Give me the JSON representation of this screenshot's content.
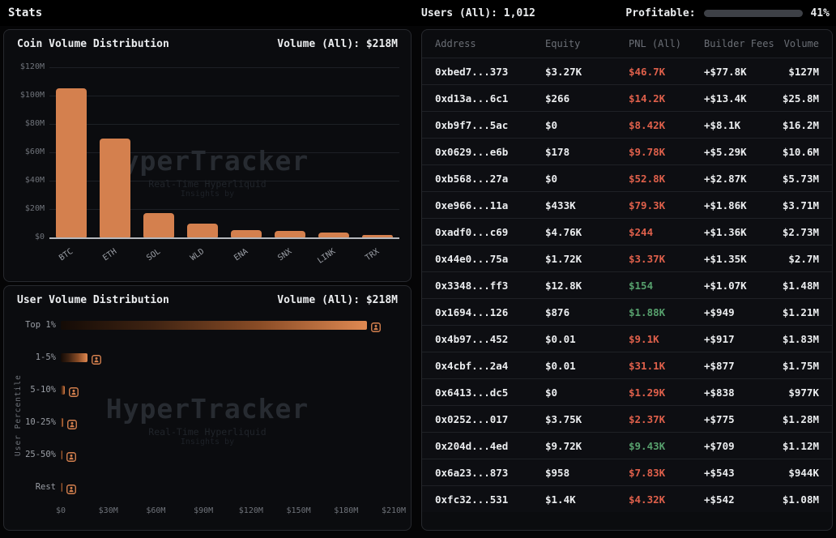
{
  "colors": {
    "accent_orange": "#d4804e",
    "pnl_negative": "#df604b",
    "pnl_positive": "#57a06d",
    "profitable_green": "#81ca90",
    "progress_track": "#3d4046"
  },
  "topbar": {
    "title": "Stats",
    "users_stat": "Users (All): 1,012",
    "profitable_label": "Profitable:",
    "profitable_percent": 41,
    "profitable_percent_label": "41%"
  },
  "watermark": {
    "title": "HyperTracker",
    "subtitle": "Real-Time Hyperliquid",
    "byline": "Insights by"
  },
  "panels": {
    "coin": {
      "title": "Coin Volume Distribution",
      "volume_label": "Volume (All): $218M"
    },
    "user": {
      "title": "User Volume Distribution",
      "volume_label": "Volume (All): $218M"
    }
  },
  "chart_data": [
    {
      "type": "bar",
      "orientation": "vertical",
      "title": "Coin Volume Distribution",
      "categories": [
        "BTC",
        "ETH",
        "SOL",
        "WLD",
        "ENA",
        "SNX",
        "LINK",
        "TRX"
      ],
      "values": [
        105,
        70,
        17.2,
        9.5,
        5.2,
        4.6,
        3.3,
        1.9
      ],
      "unit": "$M",
      "ylabel": "",
      "ylim": [
        0,
        120
      ],
      "ytick_step": 20,
      "yticks": [
        "$0",
        "$20M",
        "$40M",
        "$60M",
        "$80M",
        "$100M",
        "$120M"
      ],
      "grid": true,
      "legend": "none",
      "bar_color": "#d4804e"
    },
    {
      "type": "bar",
      "orientation": "horizontal",
      "title": "User Volume Distribution",
      "categories": [
        "Top 1%",
        "1-5%",
        "5-10%",
        "10-25%",
        "25-50%",
        "Rest"
      ],
      "values": [
        193,
        17,
        2.5,
        1.5,
        0.8,
        0.3
      ],
      "unit": "$M",
      "ylabel": "User Percentile",
      "xlim": [
        0,
        210
      ],
      "xtick_step": 30,
      "xticks": [
        "$0",
        "$30M",
        "$60M",
        "$90M",
        "$120M",
        "$150M",
        "$180M",
        "$210M"
      ],
      "grid": false,
      "legend": "none",
      "bar_gradient": [
        "#140b06",
        "#e08952"
      ]
    }
  ],
  "table": {
    "headers": [
      "Address",
      "Equity",
      "PNL (All)",
      "Builder Fees",
      "Volume"
    ],
    "rows": [
      {
        "address": "0xbed7...373",
        "equity": "$3.27K",
        "pnl": "$46.7K",
        "pnl_sign": "neg",
        "builder_fees": "+$77.8K",
        "volume": "$127M"
      },
      {
        "address": "0xd13a...6c1",
        "equity": "$266",
        "pnl": "$14.2K",
        "pnl_sign": "neg",
        "builder_fees": "+$13.4K",
        "volume": "$25.8M"
      },
      {
        "address": "0xb9f7...5ac",
        "equity": "$0",
        "pnl": "$8.42K",
        "pnl_sign": "neg",
        "builder_fees": "+$8.1K",
        "volume": "$16.2M"
      },
      {
        "address": "0x0629...e6b",
        "equity": "$178",
        "pnl": "$9.78K",
        "pnl_sign": "neg",
        "builder_fees": "+$5.29K",
        "volume": "$10.6M"
      },
      {
        "address": "0xb568...27a",
        "equity": "$0",
        "pnl": "$52.8K",
        "pnl_sign": "neg",
        "builder_fees": "+$2.87K",
        "volume": "$5.73M"
      },
      {
        "address": "0xe966...11a",
        "equity": "$433K",
        "pnl": "$79.3K",
        "pnl_sign": "neg",
        "builder_fees": "+$1.86K",
        "volume": "$3.71M"
      },
      {
        "address": "0xadf0...c69",
        "equity": "$4.76K",
        "pnl": "$244",
        "pnl_sign": "neg",
        "builder_fees": "+$1.36K",
        "volume": "$2.73M"
      },
      {
        "address": "0x44e0...75a",
        "equity": "$1.72K",
        "pnl": "$3.37K",
        "pnl_sign": "neg",
        "builder_fees": "+$1.35K",
        "volume": "$2.7M"
      },
      {
        "address": "0x3348...ff3",
        "equity": "$12.8K",
        "pnl": "$154",
        "pnl_sign": "pos",
        "builder_fees": "+$1.07K",
        "volume": "$1.48M"
      },
      {
        "address": "0x1694...126",
        "equity": "$876",
        "pnl": "$1.88K",
        "pnl_sign": "pos",
        "builder_fees": "+$949",
        "volume": "$1.21M"
      },
      {
        "address": "0x4b97...452",
        "equity": "$0.01",
        "pnl": "$9.1K",
        "pnl_sign": "neg",
        "builder_fees": "+$917",
        "volume": "$1.83M"
      },
      {
        "address": "0x4cbf...2a4",
        "equity": "$0.01",
        "pnl": "$31.1K",
        "pnl_sign": "neg",
        "builder_fees": "+$877",
        "volume": "$1.75M"
      },
      {
        "address": "0x6413...dc5",
        "equity": "$0",
        "pnl": "$1.29K",
        "pnl_sign": "neg",
        "builder_fees": "+$838",
        "volume": "$977K"
      },
      {
        "address": "0x0252...017",
        "equity": "$3.75K",
        "pnl": "$2.37K",
        "pnl_sign": "neg",
        "builder_fees": "+$775",
        "volume": "$1.28M"
      },
      {
        "address": "0x204d...4ed",
        "equity": "$9.72K",
        "pnl": "$9.43K",
        "pnl_sign": "pos",
        "builder_fees": "+$709",
        "volume": "$1.12M"
      },
      {
        "address": "0x6a23...873",
        "equity": "$958",
        "pnl": "$7.83K",
        "pnl_sign": "neg",
        "builder_fees": "+$543",
        "volume": "$944K"
      },
      {
        "address": "0xfc32...531",
        "equity": "$1.4K",
        "pnl": "$4.32K",
        "pnl_sign": "neg",
        "builder_fees": "+$542",
        "volume": "$1.08M"
      }
    ]
  }
}
